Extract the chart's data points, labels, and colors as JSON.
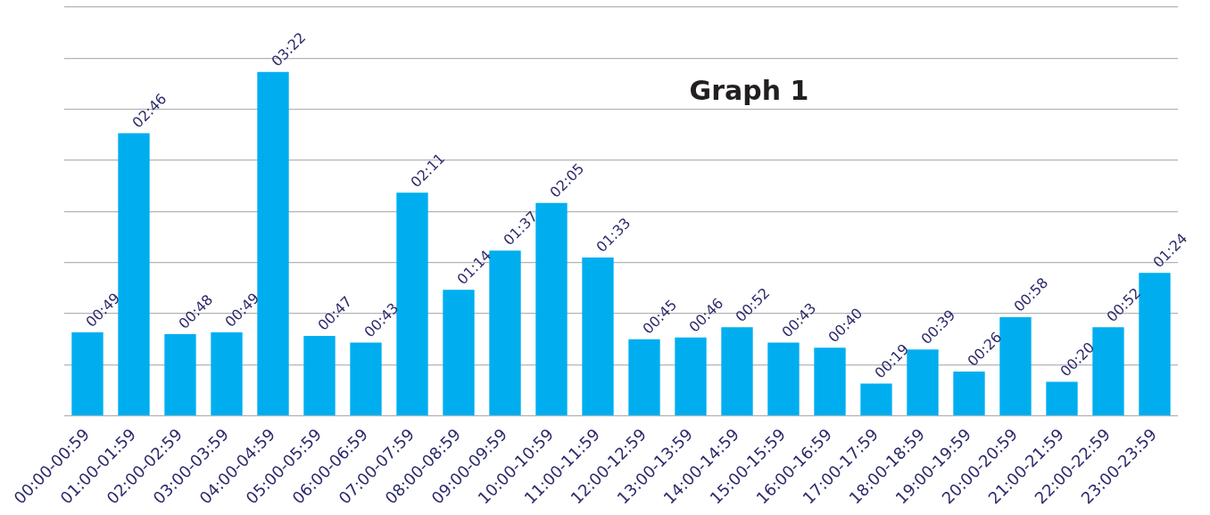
{
  "chart_data": {
    "type": "bar",
    "title": "Graph 1",
    "categories": [
      "00:00-00:59",
      "01:00-01:59",
      "02:00-02:59",
      "03:00-03:59",
      "04:00-04:59",
      "05:00-05:59",
      "06:00-06:59",
      "07:00-07:59",
      "08:00-08:59",
      "09:00-09:59",
      "10:00-10:59",
      "11:00-11:59",
      "12:00-12:59",
      "13:00-13:59",
      "14:00-14:59",
      "15:00-15:59",
      "16:00-16:59",
      "17:00-17:59",
      "18:00-18:59",
      "19:00-19:59",
      "20:00-20:59",
      "21:00-21:59",
      "22:00-22:59",
      "23:00-23:59"
    ],
    "values": [
      49,
      166,
      48,
      49,
      202,
      47,
      43,
      131,
      74,
      97,
      125,
      93,
      45,
      46,
      52,
      43,
      40,
      19,
      39,
      26,
      58,
      20,
      52,
      84
    ],
    "value_labels": [
      "00:49",
      "02:46",
      "00:48",
      "00:49",
      "03:22",
      "00:47",
      "00:43",
      "02:11",
      "01:14",
      "01:37",
      "02:05",
      "01:33",
      "00:45",
      "00:46",
      "00:52",
      "00:43",
      "00:40",
      "00:19",
      "00:39",
      "00:26",
      "00:58",
      "00:20",
      "00:52",
      "01:24"
    ],
    "color": "#00aeef",
    "ylim": [
      0,
      240
    ],
    "yticks": [
      {
        "value": 0,
        "label": null
      },
      {
        "value": 30,
        "label": null
      },
      {
        "value": 60,
        "label": null
      },
      {
        "value": 90,
        "label": null
      },
      {
        "value": 120,
        "label": null
      },
      {
        "value": 150,
        "label": null
      },
      {
        "value": 180,
        "label": null
      },
      {
        "value": 210,
        "label": null
      },
      {
        "value": 240,
        "label": null
      }
    ],
    "grid": "y",
    "tick_labels": "x",
    "legend": false
  }
}
